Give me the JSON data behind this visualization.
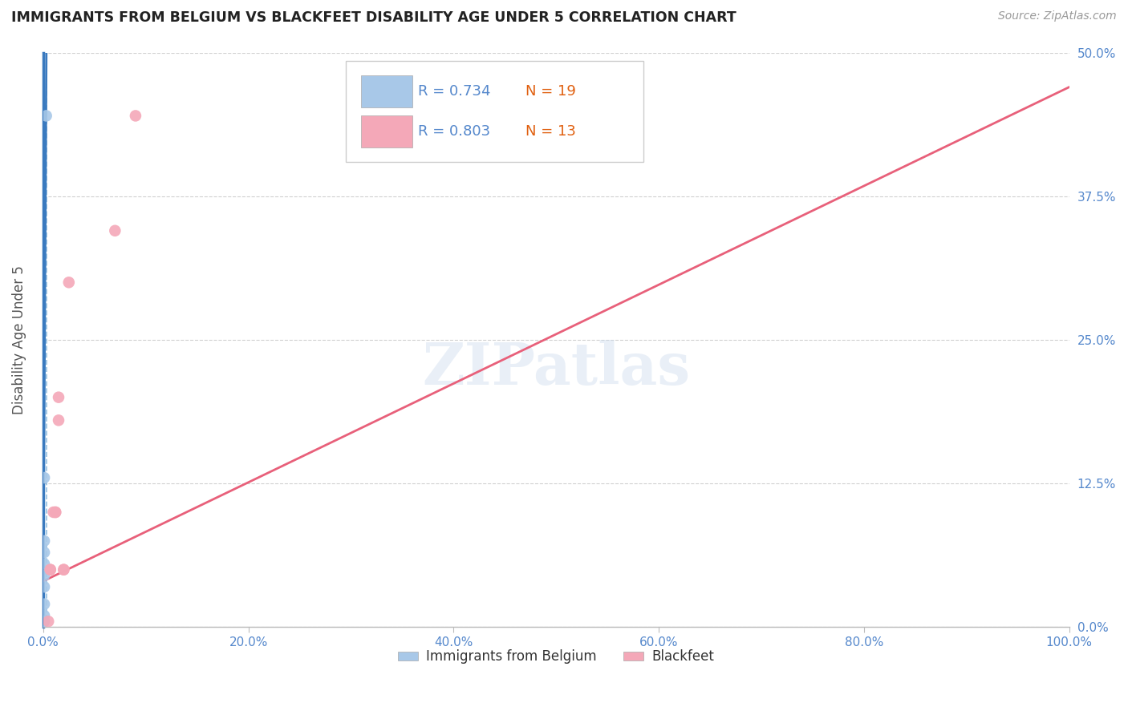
{
  "title": "IMMIGRANTS FROM BELGIUM VS BLACKFEET DISABILITY AGE UNDER 5 CORRELATION CHART",
  "source_text": "Source: ZipAtlas.com",
  "ylabel": "Disability Age Under 5",
  "r1": 0.734,
  "n1": 19,
  "r2": 0.803,
  "n2": 13,
  "color1": "#a8c8e8",
  "color2": "#f4a8b8",
  "trendline1_color": "#3a7abf",
  "trendline2_color": "#e8607a",
  "vline_color": "#7ab0d8",
  "xlim": [
    0.0,
    1.0
  ],
  "ylim": [
    0.0,
    0.5
  ],
  "x_ticks": [
    0.0,
    0.2,
    0.4,
    0.6,
    0.8,
    1.0
  ],
  "x_tick_labels": [
    "0.0%",
    "20.0%",
    "40.0%",
    "60.0%",
    "80.0%",
    "100.0%"
  ],
  "y_ticks": [
    0.0,
    0.125,
    0.25,
    0.375,
    0.5
  ],
  "y_tick_labels_right": [
    "0.0%",
    "12.5%",
    "25.0%",
    "37.5%",
    "50.0%"
  ],
  "watermark": "ZIPatlas",
  "legend_label1": "Immigrants from Belgium",
  "legend_label2": "Blackfeet",
  "scatter1_x": [
    0.003,
    0.001,
    0.001,
    0.001,
    0.001,
    0.001,
    0.001,
    0.001,
    0.001,
    0.001,
    0.0005,
    0.0005,
    0.0005,
    0.0005,
    0.0005,
    0.0005,
    0.0005,
    0.0005,
    0.0005
  ],
  "scatter1_y": [
    0.445,
    0.13,
    0.075,
    0.065,
    0.055,
    0.045,
    0.035,
    0.02,
    0.01,
    0.005,
    0.005,
    0.005,
    0.005,
    0.005,
    0.005,
    0.005,
    0.005,
    0.005,
    0.005
  ],
  "scatter2_x": [
    0.005,
    0.007,
    0.007,
    0.01,
    0.012,
    0.012,
    0.015,
    0.015,
    0.02,
    0.02,
    0.025,
    0.07,
    0.09
  ],
  "scatter2_y": [
    0.005,
    0.05,
    0.05,
    0.1,
    0.1,
    0.1,
    0.18,
    0.2,
    0.05,
    0.05,
    0.3,
    0.345,
    0.445
  ],
  "trendline1_x0": 0.0,
  "trendline1_y0": 0.025,
  "trendline1_x1": 0.0031,
  "trendline1_y1": 0.5,
  "trendline2_x0": 0.0,
  "trendline2_y0": 0.04,
  "trendline2_x1": 1.0,
  "trendline2_y1": 0.47,
  "vline_x": 0.003,
  "background_color": "#ffffff",
  "grid_color": "#d0d0d0",
  "title_color": "#222222",
  "tick_color": "#5588cc",
  "left_spine_color": "#3a7abf"
}
